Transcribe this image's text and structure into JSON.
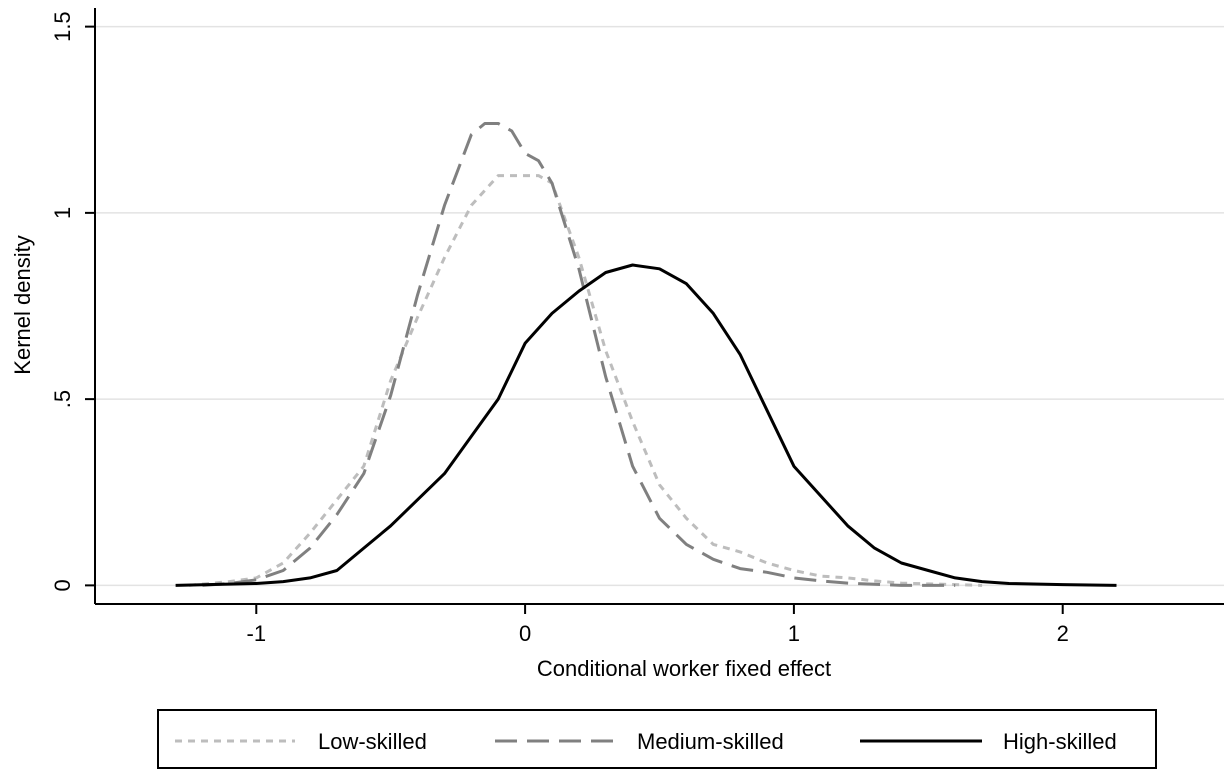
{
  "chart_data": {
    "type": "line",
    "xlabel": "Conditional worker fixed effect",
    "ylabel": "Kernel density",
    "xlim": [
      -1.6,
      2.6
    ],
    "ylim": [
      -0.05,
      1.55
    ],
    "xticks": [
      -1,
      0,
      1,
      2
    ],
    "xtick_labels": [
      "-1",
      "0",
      "1",
      "2"
    ],
    "yticks": [
      0,
      0.5,
      1,
      1.5
    ],
    "ytick_labels": [
      "0",
      ".5",
      "1",
      "1.5"
    ],
    "grid": "horizontal",
    "legend_position": "bottom",
    "series": [
      {
        "name": "Low-skilled",
        "color": "#bdbdbd",
        "dash": "dotted",
        "points": [
          [
            -1.25,
            0.0
          ],
          [
            -1.1,
            0.01
          ],
          [
            -1.0,
            0.02
          ],
          [
            -0.9,
            0.06
          ],
          [
            -0.8,
            0.14
          ],
          [
            -0.7,
            0.23
          ],
          [
            -0.6,
            0.32
          ],
          [
            -0.5,
            0.55
          ],
          [
            -0.4,
            0.72
          ],
          [
            -0.3,
            0.88
          ],
          [
            -0.2,
            1.02
          ],
          [
            -0.1,
            1.1
          ],
          [
            0.0,
            1.1
          ],
          [
            0.05,
            1.1
          ],
          [
            0.1,
            1.08
          ],
          [
            0.2,
            0.88
          ],
          [
            0.3,
            0.63
          ],
          [
            0.4,
            0.44
          ],
          [
            0.5,
            0.27
          ],
          [
            0.6,
            0.18
          ],
          [
            0.7,
            0.11
          ],
          [
            0.8,
            0.09
          ],
          [
            0.9,
            0.06
          ],
          [
            1.0,
            0.04
          ],
          [
            1.1,
            0.025
          ],
          [
            1.2,
            0.02
          ],
          [
            1.3,
            0.012
          ],
          [
            1.4,
            0.006
          ],
          [
            1.5,
            0.004
          ],
          [
            1.6,
            0.002
          ],
          [
            1.7,
            0.0
          ]
        ]
      },
      {
        "name": "Medium-skilled",
        "color": "#808080",
        "dash": "dashed",
        "points": [
          [
            -1.2,
            0.0
          ],
          [
            -1.1,
            0.005
          ],
          [
            -1.0,
            0.015
          ],
          [
            -0.9,
            0.04
          ],
          [
            -0.8,
            0.1
          ],
          [
            -0.7,
            0.19
          ],
          [
            -0.6,
            0.3
          ],
          [
            -0.5,
            0.51
          ],
          [
            -0.4,
            0.78
          ],
          [
            -0.3,
            1.02
          ],
          [
            -0.2,
            1.21
          ],
          [
            -0.15,
            1.24
          ],
          [
            -0.1,
            1.24
          ],
          [
            -0.05,
            1.22
          ],
          [
            0.0,
            1.16
          ],
          [
            0.05,
            1.14
          ],
          [
            0.1,
            1.08
          ],
          [
            0.2,
            0.85
          ],
          [
            0.3,
            0.56
          ],
          [
            0.4,
            0.32
          ],
          [
            0.5,
            0.18
          ],
          [
            0.6,
            0.11
          ],
          [
            0.7,
            0.07
          ],
          [
            0.8,
            0.045
          ],
          [
            0.9,
            0.035
          ],
          [
            1.0,
            0.02
          ],
          [
            1.1,
            0.012
          ],
          [
            1.2,
            0.006
          ],
          [
            1.3,
            0.003
          ],
          [
            1.4,
            0.0
          ],
          [
            1.6,
            0.0
          ]
        ]
      },
      {
        "name": "High-skilled",
        "color": "#000000",
        "dash": "solid",
        "points": [
          [
            -1.3,
            0.0
          ],
          [
            -1.0,
            0.005
          ],
          [
            -0.9,
            0.01
          ],
          [
            -0.8,
            0.02
          ],
          [
            -0.7,
            0.04
          ],
          [
            -0.6,
            0.1
          ],
          [
            -0.5,
            0.16
          ],
          [
            -0.4,
            0.23
          ],
          [
            -0.3,
            0.3
          ],
          [
            -0.2,
            0.4
          ],
          [
            -0.1,
            0.5
          ],
          [
            0.0,
            0.65
          ],
          [
            0.1,
            0.73
          ],
          [
            0.2,
            0.79
          ],
          [
            0.3,
            0.84
          ],
          [
            0.4,
            0.86
          ],
          [
            0.5,
            0.85
          ],
          [
            0.6,
            0.81
          ],
          [
            0.7,
            0.73
          ],
          [
            0.8,
            0.62
          ],
          [
            0.9,
            0.47
          ],
          [
            1.0,
            0.32
          ],
          [
            1.1,
            0.24
          ],
          [
            1.2,
            0.16
          ],
          [
            1.3,
            0.1
          ],
          [
            1.4,
            0.06
          ],
          [
            1.5,
            0.04
          ],
          [
            1.6,
            0.02
          ],
          [
            1.7,
            0.01
          ],
          [
            1.8,
            0.005
          ],
          [
            2.0,
            0.002
          ],
          [
            2.2,
            0.0
          ]
        ]
      }
    ]
  }
}
